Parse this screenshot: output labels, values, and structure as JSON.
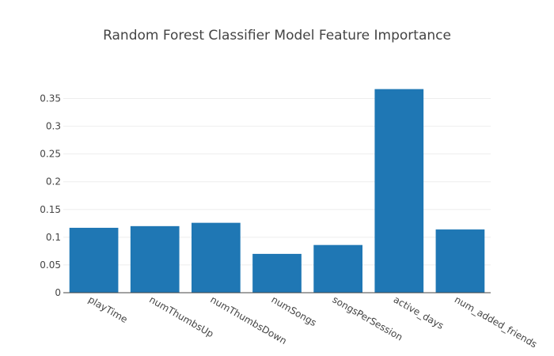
{
  "chart_data": {
    "type": "bar",
    "title": "Random Forest Classifier Model Feature Importance",
    "categories": [
      "playTime",
      "numThumbsUp",
      "numThumbsDown",
      "numSongs",
      "songsPerSession",
      "active_days",
      "num_added_friends"
    ],
    "values": [
      0.117,
      0.12,
      0.126,
      0.07,
      0.086,
      0.367,
      0.114
    ],
    "xlabel": "",
    "ylabel": "",
    "ylim": [
      0,
      0.385
    ],
    "yticks": [
      0,
      0.05,
      0.1,
      0.15,
      0.2,
      0.25,
      0.3,
      0.35
    ],
    "ytick_labels": [
      "0",
      "0.05",
      "0.1",
      "0.15",
      "0.2",
      "0.25",
      "0.3",
      "0.35"
    ],
    "grid": true,
    "bar_color": "#1f77b4",
    "zero_line_color": "#444444"
  }
}
